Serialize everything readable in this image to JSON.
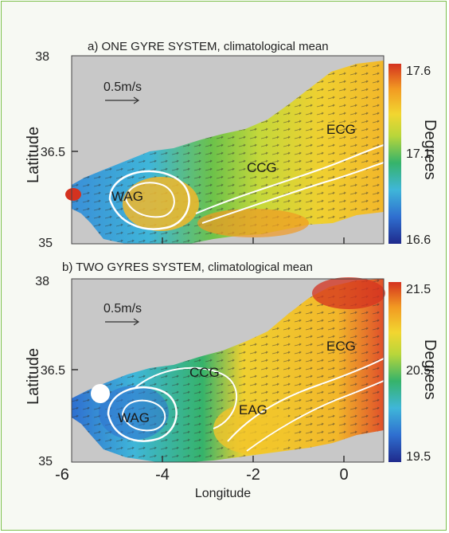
{
  "panels": [
    {
      "title": "a) ONE GYRE SYSTEM, climatological mean",
      "scale_label": "0.5m/s",
      "colorbar": {
        "max": "17.6",
        "mid": "17.1",
        "min": "16.6",
        "label": "Degrees"
      },
      "y_ticks": [
        "38",
        "36.5",
        "35"
      ],
      "regions": [
        "WAG",
        "CCG",
        "ECG"
      ]
    },
    {
      "title": "b) TWO GYRES SYSTEM, climatological mean",
      "scale_label": "0.5m/s",
      "colorbar": {
        "max": "21.5",
        "mid": "20.5",
        "min": "19.5",
        "label": "Degrees"
      },
      "y_ticks": [
        "38",
        "36.5",
        "35"
      ],
      "regions": [
        "WAG",
        "CCG",
        "EAG",
        "ECG"
      ]
    }
  ],
  "axes": {
    "ylabel": "Latitude",
    "xlabel": "Longitude",
    "x_ticks": [
      "-6",
      "-4",
      "-2",
      "0"
    ]
  },
  "colors": {
    "land": "#c8c8c8",
    "frame_border": "#7cbf4a",
    "colormap": [
      "#1f2a8c",
      "#2f6fd0",
      "#3fb6d9",
      "#36b36a",
      "#b9d63a",
      "#f2d630",
      "#f29a22",
      "#d4321f"
    ]
  }
}
